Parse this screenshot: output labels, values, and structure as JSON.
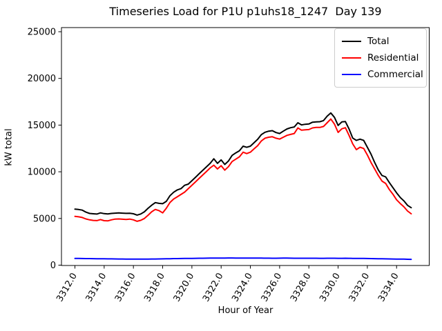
{
  "title": "Timeseries Load for P1U p1uhs18_1247  Day 139",
  "chart_data": {
    "type": "line",
    "title": "Timeseries Load for P1U p1uhs18_1247  Day 139",
    "xlabel": "Hour of Year",
    "ylabel": "kW total",
    "grid": false,
    "legend_position": "upper right",
    "xlim": [
      3310.85,
      3336.15
    ],
    "ylim": [
      0,
      25000
    ],
    "x_tick_labels": [
      "3312.0",
      "3314.0",
      "3316.0",
      "3318.0",
      "3320.0",
      "3322.0",
      "3324.0",
      "3326.0",
      "3328.0",
      "3330.0",
      "3332.0",
      "3334.0"
    ],
    "x_tick_values": [
      3312,
      3314,
      3316,
      3318,
      3320,
      3322,
      3324,
      3326,
      3328,
      3330,
      3332,
      3334
    ],
    "y_tick_labels": [
      "0",
      "5000",
      "10000",
      "15000",
      "20000",
      "25000"
    ],
    "y_tick_values": [
      0,
      5000,
      10000,
      15000,
      20000,
      25000
    ],
    "x": [
      3312.0,
      3312.25,
      3312.5,
      3312.75,
      3313.0,
      3313.25,
      3313.5,
      3313.75,
      3314.0,
      3314.25,
      3314.5,
      3314.75,
      3315.0,
      3315.25,
      3315.5,
      3315.75,
      3316.0,
      3316.25,
      3316.5,
      3316.75,
      3317.0,
      3317.25,
      3317.5,
      3317.75,
      3318.0,
      3318.25,
      3318.5,
      3318.75,
      3319.0,
      3319.25,
      3319.5,
      3319.75,
      3320.0,
      3320.25,
      3320.5,
      3320.75,
      3321.0,
      3321.25,
      3321.5,
      3321.75,
      3322.0,
      3322.25,
      3322.5,
      3322.75,
      3323.0,
      3323.25,
      3323.5,
      3323.75,
      3324.0,
      3324.25,
      3324.5,
      3324.75,
      3325.0,
      3325.25,
      3325.5,
      3325.75,
      3326.0,
      3326.25,
      3326.5,
      3326.75,
      3327.0,
      3327.25,
      3327.5,
      3327.75,
      3328.0,
      3328.25,
      3328.5,
      3328.75,
      3329.0,
      3329.25,
      3329.5,
      3329.75,
      3330.0,
      3330.25,
      3330.5,
      3330.75,
      3331.0,
      3331.25,
      3331.5,
      3331.75,
      3332.0,
      3332.25,
      3332.5,
      3332.75,
      3333.0,
      3333.25,
      3333.5,
      3333.75,
      3334.0,
      3334.25,
      3334.5,
      3334.75,
      3335.0
    ],
    "series": [
      {
        "name": "Total",
        "color": "#000000",
        "values": [
          6000,
          5960,
          5890,
          5680,
          5540,
          5500,
          5470,
          5600,
          5520,
          5480,
          5540,
          5570,
          5600,
          5570,
          5550,
          5560,
          5500,
          5360,
          5480,
          5720,
          6090,
          6420,
          6700,
          6620,
          6580,
          6830,
          7440,
          7810,
          8060,
          8190,
          8550,
          8680,
          9050,
          9420,
          9790,
          10160,
          10530,
          10900,
          11390,
          10900,
          11270,
          10780,
          11150,
          11760,
          12020,
          12250,
          12740,
          12620,
          12740,
          13110,
          13480,
          13980,
          14230,
          14350,
          14400,
          14200,
          14100,
          14350,
          14590,
          14720,
          14800,
          15250,
          15020,
          15090,
          15120,
          15310,
          15340,
          15360,
          15480,
          15950,
          16300,
          15830,
          14960,
          15340,
          15380,
          14590,
          13610,
          13360,
          13490,
          13360,
          12630,
          11890,
          11000,
          10200,
          9600,
          9450,
          8850,
          8300,
          7750,
          7250,
          6880,
          6400,
          6150
        ]
      },
      {
        "name": "Residential",
        "color": "#ff0000",
        "values": [
          5230,
          5180,
          5100,
          4950,
          4850,
          4790,
          4770,
          4880,
          4760,
          4740,
          4850,
          4930,
          4950,
          4920,
          4900,
          4930,
          4850,
          4700,
          4800,
          5000,
          5350,
          5720,
          5970,
          5840,
          5600,
          6090,
          6710,
          7080,
          7320,
          7570,
          7820,
          8190,
          8560,
          8930,
          9300,
          9670,
          10040,
          10410,
          10700,
          10300,
          10650,
          10180,
          10550,
          11100,
          11350,
          11600,
          12100,
          11950,
          12100,
          12450,
          12800,
          13300,
          13600,
          13700,
          13750,
          13600,
          13500,
          13700,
          13900,
          14000,
          14100,
          14700,
          14450,
          14500,
          14520,
          14700,
          14750,
          14750,
          14850,
          15250,
          15650,
          15100,
          14220,
          14600,
          14720,
          13900,
          12990,
          12370,
          12630,
          12500,
          11800,
          11000,
          10300,
          9600,
          9000,
          8750,
          8100,
          7600,
          7000,
          6600,
          6250,
          5800,
          5500
        ]
      },
      {
        "name": "Commercial",
        "color": "#0000ff",
        "values": [
          720,
          715,
          710,
          705,
          700,
          695,
          690,
          685,
          680,
          675,
          670,
          665,
          660,
          655,
          650,
          650,
          645,
          640,
          640,
          645,
          650,
          655,
          660,
          665,
          670,
          680,
          690,
          700,
          705,
          710,
          715,
          720,
          725,
          730,
          735,
          740,
          745,
          750,
          755,
          755,
          760,
          760,
          765,
          765,
          760,
          760,
          755,
          755,
          760,
          755,
          750,
          750,
          745,
          745,
          740,
          740,
          745,
          750,
          750,
          745,
          740,
          740,
          735,
          735,
          740,
          740,
          735,
          730,
          730,
          735,
          740,
          735,
          730,
          730,
          735,
          730,
          725,
          720,
          720,
          715,
          710,
          700,
          695,
          690,
          680,
          670,
          665,
          655,
          650,
          645,
          640,
          630,
          620
        ]
      }
    ]
  }
}
